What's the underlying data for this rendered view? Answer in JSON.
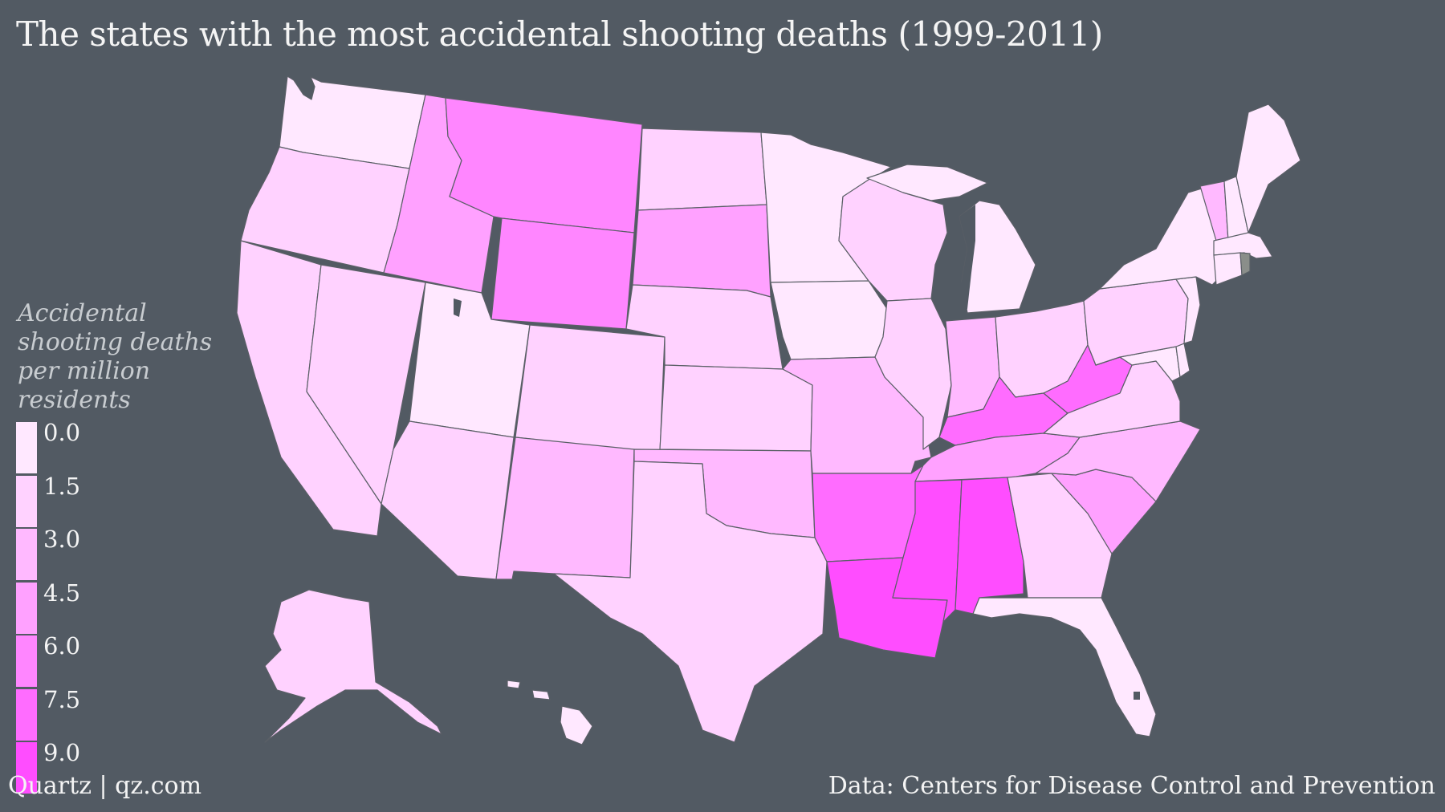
{
  "title": "The states with the most accidental shooting deaths (1999-2011)",
  "legend": {
    "title_lines": [
      "Accidental",
      "shooting deaths",
      "per million",
      "residents"
    ],
    "stops": [
      {
        "label": "0.0",
        "color": "#ffe8ff"
      },
      {
        "label": "1.5",
        "color": "#ffd2ff"
      },
      {
        "label": "3.0",
        "color": "#ffb9ff"
      },
      {
        "label": "4.5",
        "color": "#ffa1ff"
      },
      {
        "label": "6.0",
        "color": "#ff86ff"
      },
      {
        "label": "7.5",
        "color": "#ff6cff"
      },
      {
        "label": "9.0",
        "color": "#ff4dff"
      }
    ]
  },
  "map": {
    "background": "#525a63",
    "border_color": "#5a5f66",
    "no_data_color": "#8a8e8a",
    "level_colors": [
      "#ffe8ff",
      "#ffd2ff",
      "#ffb9ff",
      "#ffa1ff",
      "#ff86ff",
      "#ff6cff",
      "#ff4dff"
    ],
    "states": {
      "WA": 0,
      "OR": 1,
      "CA": 1,
      "NV": 1,
      "ID": 3,
      "MT": 4,
      "WY": 4,
      "UT": 0,
      "AZ": 1,
      "CO": 1,
      "NM": 2,
      "ND": 1,
      "SD": 3,
      "NE": 1,
      "KS": 1,
      "OK": 2,
      "TX": 1,
      "MN": 0,
      "IA": 0,
      "MO": 2,
      "AR": 5,
      "LA": 6,
      "WI": 1,
      "IL": 1,
      "MS": 6,
      "MI": 0,
      "IN": 2,
      "OH": 1,
      "KY": 5,
      "TN": 3,
      "AL": 6,
      "GA": 1,
      "FL": 0,
      "SC": 3,
      "NC": 2,
      "VA": 1,
      "WV": 5,
      "MD": 0,
      "DE": 0,
      "PA": 1,
      "NJ": 0,
      "NY": 0,
      "CT": 0,
      "RI": null,
      "MA": 0,
      "VT": 2,
      "NH": 0,
      "ME": 0,
      "AK": 1,
      "HI": 0
    }
  },
  "footer": {
    "left": "Quartz | qz.com",
    "right": "Data: Centers for Disease Control and Prevention"
  }
}
